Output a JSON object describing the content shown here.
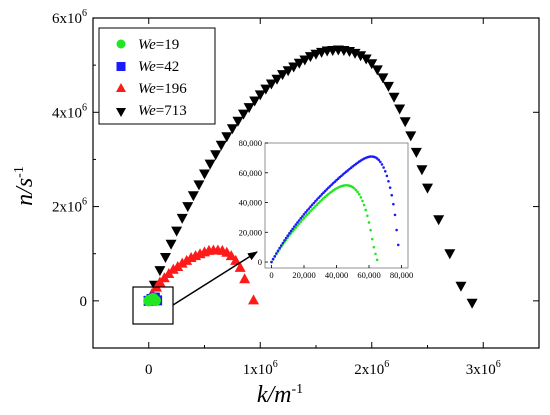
{
  "chart_data": [
    {
      "type": "scatter",
      "xlabel": "k/m",
      "xlabel_sup": "-1",
      "ylabel": "n/s",
      "ylabel_sup": "-1",
      "xlim": [
        -500000,
        3500000
      ],
      "ylim": [
        -1000000,
        6000000
      ],
      "x_ticks": [
        {
          "value": 0,
          "label": "0",
          "sup": ""
        },
        {
          "value": 1000000,
          "label": "1x10",
          "sup": "6"
        },
        {
          "value": 2000000,
          "label": "2x10",
          "sup": "6"
        },
        {
          "value": 3000000,
          "label": "3x10",
          "sup": "6"
        }
      ],
      "y_ticks": [
        {
          "value": 0,
          "label": "0",
          "sup": ""
        },
        {
          "value": 2000000,
          "label": "2x10",
          "sup": "6"
        },
        {
          "value": 4000000,
          "label": "4x10",
          "sup": "6"
        },
        {
          "value": 6000000,
          "label": "6x10",
          "sup": "6"
        }
      ],
      "legend_position": "top-left",
      "series": [
        {
          "name": "We=19",
          "name_italic": "We",
          "name_rest": "=19",
          "marker": "circle",
          "color": "#22e622",
          "x": [
            0,
            20000,
            40000,
            60000
          ],
          "y": [
            0,
            25000,
            50000,
            5000
          ]
        },
        {
          "name": "We=42",
          "name_italic": "We",
          "name_rest": "=42",
          "marker": "square",
          "color": "#1a1aff",
          "x": [
            0,
            25000,
            55000,
            75000
          ],
          "y": [
            0,
            40000,
            70000,
            10000
          ]
        },
        {
          "name": "We=196",
          "name_italic": "We",
          "name_rest": "=196",
          "marker": "triangle-up",
          "color": "#ff1a1a",
          "x": [
            0,
            30000,
            70000,
            100000,
            140000,
            180000,
            220000,
            260000,
            300000,
            340000,
            380000,
            420000,
            460000,
            500000,
            540000,
            580000,
            620000,
            660000,
            700000,
            740000,
            780000,
            820000,
            860000,
            940000
          ],
          "y": [
            0,
            160000,
            290000,
            400000,
            490000,
            580000,
            670000,
            730000,
            800000,
            860000,
            920000,
            960000,
            1000000,
            1040000,
            1070000,
            1080000,
            1080000,
            1070000,
            1030000,
            960000,
            860000,
            710000,
            470000,
            20000
          ]
        },
        {
          "name": "We=713",
          "name_italic": "We",
          "name_rest": "=713",
          "marker": "triangle-down",
          "color": "#000000",
          "x": [
            0,
            50000,
            100000,
            150000,
            200000,
            250000,
            300000,
            350000,
            400000,
            450000,
            500000,
            550000,
            600000,
            650000,
            700000,
            750000,
            800000,
            850000,
            900000,
            950000,
            1000000,
            1050000,
            1100000,
            1150000,
            1200000,
            1250000,
            1300000,
            1350000,
            1400000,
            1450000,
            1500000,
            1550000,
            1600000,
            1650000,
            1700000,
            1750000,
            1800000,
            1850000,
            1900000,
            1950000,
            2000000,
            2050000,
            2100000,
            2150000,
            2200000,
            2250000,
            2300000,
            2350000,
            2400000,
            2450000,
            2500000,
            2600000,
            2700000,
            2800000,
            2900000
          ],
          "y": [
            0,
            330000,
            640000,
            920000,
            1200000,
            1480000,
            1750000,
            2000000,
            2230000,
            2460000,
            2690000,
            2900000,
            3100000,
            3300000,
            3480000,
            3650000,
            3810000,
            3960000,
            4100000,
            4240000,
            4370000,
            4490000,
            4600000,
            4700000,
            4800000,
            4880000,
            4960000,
            5040000,
            5110000,
            5180000,
            5230000,
            5270000,
            5300000,
            5310000,
            5320000,
            5310000,
            5290000,
            5250000,
            5200000,
            5130000,
            5030000,
            4900000,
            4730000,
            4550000,
            4320000,
            4070000,
            3800000,
            3500000,
            3150000,
            2780000,
            2390000,
            1720000,
            1000000,
            310000,
            -50000
          ]
        }
      ]
    },
    {
      "type": "scatter",
      "xlim": [
        -4000,
        84000
      ],
      "ylim": [
        -4000,
        80000
      ],
      "x_ticks": [
        {
          "value": 0,
          "label": "0"
        },
        {
          "value": 20000,
          "label": "20,000"
        },
        {
          "value": 40000,
          "label": "40,000"
        },
        {
          "value": 60000,
          "label": "60,000"
        },
        {
          "value": 80000,
          "label": "80,000"
        }
      ],
      "y_ticks": [
        {
          "value": 0,
          "label": "0"
        },
        {
          "value": 20000,
          "label": "20,000"
        },
        {
          "value": 40000,
          "label": "40,000"
        },
        {
          "value": 60000,
          "label": "60,000"
        },
        {
          "value": 80000,
          "label": "80,000"
        }
      ],
      "series": [
        {
          "name": "We=19",
          "color": "#22e622",
          "x": [
            0,
            1000,
            2000,
            3000,
            4000,
            5000,
            6000,
            7000,
            8000,
            9000,
            10000,
            11000,
            12000,
            13000,
            14000,
            15000,
            16000,
            17000,
            18000,
            19000,
            20000,
            21000,
            22000,
            23000,
            24000,
            25000,
            26000,
            27000,
            28000,
            29000,
            30000,
            31000,
            32000,
            33000,
            34000,
            35000,
            36000,
            37000,
            38000,
            39000,
            40000,
            41000,
            42000,
            43000,
            44000,
            45000,
            46000,
            47000,
            48000,
            49000,
            50000,
            51000,
            52000,
            53000,
            54000,
            55000,
            56000,
            57000,
            58000,
            59000,
            60000,
            61000,
            62000,
            63000,
            64000,
            65000
          ],
          "y": [
            0,
            1800,
            3600,
            5300,
            7000,
            8700,
            10300,
            11900,
            13400,
            14900,
            16400,
            17800,
            19200,
            20600,
            21900,
            23200,
            24500,
            25800,
            27000,
            28300,
            29500,
            30700,
            31900,
            33000,
            34200,
            35300,
            36400,
            37500,
            38600,
            39700,
            40700,
            41800,
            42800,
            43800,
            44700,
            45600,
            46500,
            47300,
            48100,
            48800,
            49500,
            50100,
            50600,
            51000,
            51300,
            51500,
            51600,
            51500,
            51300,
            50900,
            50300,
            49500,
            48400,
            47100,
            45500,
            43500,
            41100,
            38300,
            35000,
            31100,
            26600,
            21400,
            15400,
            10000,
            5500,
            1500
          ]
        },
        {
          "name": "We=42",
          "color": "#1a1aff",
          "x": [
            0,
            1000,
            2000,
            3000,
            4000,
            5000,
            6000,
            7000,
            8000,
            9000,
            10000,
            11000,
            12000,
            13000,
            14000,
            15000,
            16000,
            17000,
            18000,
            19000,
            20000,
            21000,
            22000,
            23000,
            24000,
            25000,
            26000,
            27000,
            28000,
            29000,
            30000,
            31000,
            32000,
            33000,
            34000,
            35000,
            36000,
            37000,
            38000,
            39000,
            40000,
            41000,
            42000,
            43000,
            44000,
            45000,
            46000,
            47000,
            48000,
            49000,
            50000,
            51000,
            52000,
            53000,
            54000,
            55000,
            56000,
            57000,
            58000,
            59000,
            60000,
            61000,
            62000,
            63000,
            64000,
            65000,
            66000,
            67000,
            68000,
            69000,
            70000,
            71000,
            72000,
            73000,
            74000,
            75000,
            76000,
            77000,
            78000
          ],
          "y": [
            0,
            2000,
            3900,
            5800,
            7600,
            9400,
            11100,
            12800,
            14500,
            16100,
            17700,
            19300,
            20800,
            22300,
            23800,
            25200,
            26600,
            28000,
            29400,
            30700,
            32100,
            33400,
            34700,
            35900,
            37200,
            38400,
            39600,
            40800,
            42000,
            43200,
            44300,
            45500,
            46600,
            47700,
            48800,
            49900,
            50900,
            52000,
            53000,
            54000,
            55000,
            56000,
            57000,
            57900,
            58900,
            59800,
            60700,
            61600,
            62500,
            63400,
            64300,
            65100,
            65900,
            66700,
            67500,
            68200,
            68900,
            69500,
            70000,
            70400,
            70700,
            70900,
            70900,
            70700,
            70300,
            69600,
            68600,
            67300,
            65600,
            63500,
            61000,
            57900,
            54300,
            50000,
            44900,
            38900,
            31700,
            21500,
            11500
          ]
        }
      ]
    }
  ]
}
